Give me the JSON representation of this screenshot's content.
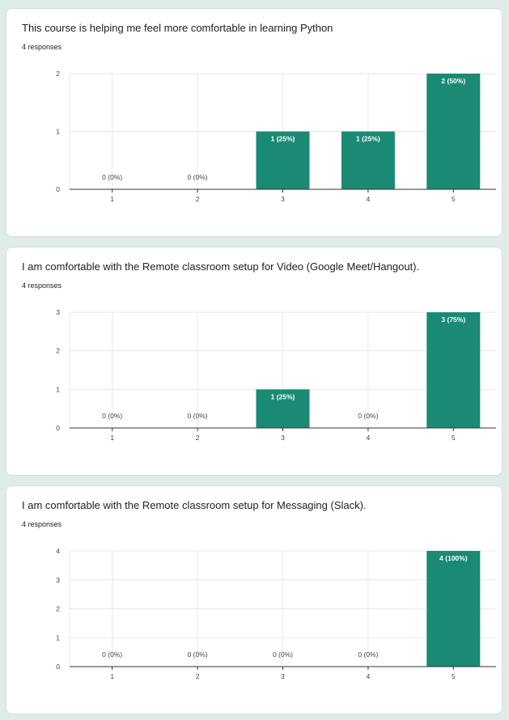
{
  "colors": {
    "bar": "#1a8a74",
    "grid": "#e8e8e8",
    "axis": "#333333",
    "background": "#deecea"
  },
  "questions": [
    {
      "title": "This course is helping me feel more comfortable in learning Python",
      "responses": "4 responses"
    },
    {
      "title": "I am comfortable with the Remote classroom setup for Video (Google Meet/Hangout).",
      "responses": "4 responses"
    },
    {
      "title": "I am comfortable with the Remote classroom setup for Messaging (Slack).",
      "responses": "4 responses"
    }
  ],
  "chart_data": [
    {
      "type": "bar",
      "categories": [
        "1",
        "2",
        "3",
        "4",
        "5"
      ],
      "values": [
        0,
        0,
        1,
        1,
        2
      ],
      "data_labels": [
        "0 (0%)",
        "0 (0%)",
        "1 (25%)",
        "1 (25%)",
        "2 (50%)"
      ],
      "ylim": [
        0,
        2
      ],
      "yticks": [
        0,
        1,
        2
      ],
      "grid": true,
      "xlabel": "",
      "ylabel": ""
    },
    {
      "type": "bar",
      "categories": [
        "1",
        "2",
        "3",
        "4",
        "5"
      ],
      "values": [
        0,
        0,
        1,
        0,
        3
      ],
      "data_labels": [
        "0 (0%)",
        "0 (0%)",
        "1 (25%)",
        "0 (0%)",
        "3 (75%)"
      ],
      "ylim": [
        0,
        3
      ],
      "yticks": [
        0,
        1,
        2,
        3
      ],
      "grid": true,
      "xlabel": "",
      "ylabel": ""
    },
    {
      "type": "bar",
      "categories": [
        "1",
        "2",
        "3",
        "4",
        "5"
      ],
      "values": [
        0,
        0,
        0,
        0,
        4
      ],
      "data_labels": [
        "0 (0%)",
        "0 (0%)",
        "0 (0%)",
        "0 (0%)",
        "4 (100%)"
      ],
      "ylim": [
        0,
        4
      ],
      "yticks": [
        0,
        1,
        2,
        3,
        4
      ],
      "grid": true,
      "xlabel": "",
      "ylabel": ""
    }
  ]
}
